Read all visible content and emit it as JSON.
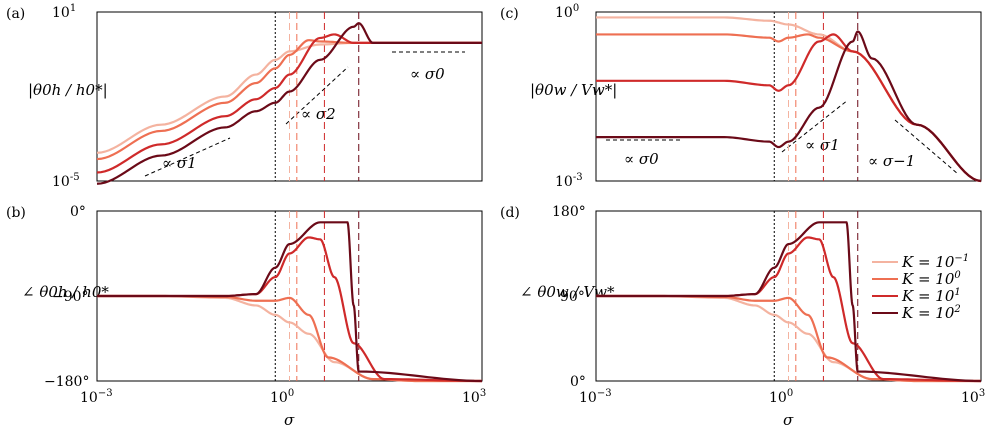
{
  "figure": {
    "x_axis_label": "σ",
    "colors": [
      "#f4b3a0",
      "#ee6f52",
      "#cf2a2a",
      "#6b0a18"
    ]
  },
  "chart_data": [
    {
      "panel": "(a)",
      "type": "line",
      "x_scale": "log",
      "y_scale": "log",
      "xlim": [
        0.001,
        1000
      ],
      "ylim": [
        1e-05,
        10
      ],
      "ylabel": "|θ0h / h0*|",
      "y_ticks": [
        {
          "base": "10",
          "exp": "-5"
        },
        {
          "base": "10",
          "exp": "1"
        }
      ],
      "x_ticks": [],
      "annotations": [
        "∝ σ1",
        "∝ σ2",
        "∝ σ0"
      ],
      "series": [
        {
          "name": "K = 10^-1",
          "x": [
            0.001,
            0.01,
            0.1,
            0.3,
            0.6,
            1,
            3,
            10,
            1000
          ],
          "y": [
            0.0001,
            0.001,
            0.01,
            0.06,
            0.2,
            0.4,
            0.7,
            0.8,
            0.8
          ]
        },
        {
          "name": "K = 10^0",
          "x": [
            0.001,
            0.01,
            0.1,
            0.3,
            0.6,
            1,
            2,
            3,
            10,
            1000
          ],
          "y": [
            6e-05,
            0.0006,
            0.006,
            0.03,
            0.1,
            0.3,
            1.0,
            0.9,
            0.8,
            0.8
          ]
        },
        {
          "name": "K = 10^1",
          "x": [
            0.001,
            0.01,
            0.1,
            0.3,
            0.6,
            1,
            3,
            5,
            10,
            1000
          ],
          "y": [
            2e-05,
            0.0002,
            0.002,
            0.008,
            0.02,
            0.06,
            1.2,
            1.6,
            0.8,
            0.8
          ]
        },
        {
          "name": "K = 10^2",
          "x": [
            0.001,
            0.01,
            0.1,
            0.3,
            0.6,
            1,
            3,
            10,
            12,
            20,
            1000
          ],
          "y": [
            8e-06,
            8e-05,
            0.0008,
            0.003,
            0.006,
            0.015,
            0.2,
            3.0,
            4.0,
            0.8,
            0.8
          ]
        }
      ]
    },
    {
      "panel": "(b)",
      "type": "line",
      "x_scale": "log",
      "y_scale": "linear",
      "xlim": [
        0.001,
        1000
      ],
      "ylim": [
        -180,
        0
      ],
      "ylabel": "∠ θ0h / h0*",
      "y_ticks": [
        "0°",
        "−90°",
        "−180°"
      ],
      "x_ticks": [
        {
          "base": "10",
          "exp": "−3"
        },
        {
          "base": "10",
          "exp": "0"
        },
        {
          "base": "10",
          "exp": "3"
        }
      ],
      "series": [
        {
          "name": "K = 10^-1",
          "x": [
            0.001,
            0.01,
            0.1,
            0.3,
            0.6,
            1,
            2,
            5,
            20,
            100,
            1000
          ],
          "y": [
            -90,
            -90,
            -92,
            -100,
            -110,
            -118,
            -130,
            -160,
            -178,
            -180,
            -180
          ]
        },
        {
          "name": "K = 10^0",
          "x": [
            0.001,
            0.01,
            0.1,
            0.3,
            0.6,
            1,
            2,
            4,
            20,
            100,
            1000
          ],
          "y": [
            -90,
            -90,
            -91,
            -95,
            -95,
            -92,
            -110,
            -155,
            -178,
            -180,
            -180
          ]
        },
        {
          "name": "K = 10^1",
          "x": [
            0.001,
            0.01,
            0.1,
            0.3,
            0.6,
            1,
            2,
            3,
            5,
            10,
            30,
            1000
          ],
          "y": [
            -90,
            -90,
            -90,
            -88,
            -70,
            -45,
            -28,
            -30,
            -70,
            -140,
            -178,
            -180
          ]
        },
        {
          "name": "K = 10^2",
          "x": [
            0.001,
            0.01,
            0.1,
            0.3,
            0.6,
            1,
            3,
            8,
            10,
            12,
            1000
          ],
          "y": [
            -90,
            -90,
            -90,
            -88,
            -60,
            -35,
            -12,
            -12,
            -100,
            -170,
            -180
          ]
        }
      ]
    },
    {
      "panel": "(c)",
      "type": "line",
      "x_scale": "log",
      "y_scale": "log",
      "xlim": [
        0.001,
        1000
      ],
      "ylim": [
        0.001,
        1
      ],
      "ylabel": "|θ0w / Vw*|",
      "y_ticks": [
        {
          "base": "10",
          "exp": "-3"
        },
        {
          "base": "10",
          "exp": "0"
        }
      ],
      "x_ticks": [],
      "annotations": [
        "∝ σ0",
        "∝ σ1",
        "∝ σ−1"
      ],
      "series": [
        {
          "name": "K = 10^-1",
          "x": [
            0.001,
            0.01,
            0.1,
            0.5,
            1,
            3,
            10,
            100,
            1000
          ],
          "y": [
            0.8,
            0.8,
            0.8,
            0.7,
            0.6,
            0.4,
            0.2,
            0.01,
            0.001
          ]
        },
        {
          "name": "K = 10^0",
          "x": [
            0.001,
            0.01,
            0.1,
            0.5,
            0.7,
            1,
            2,
            3,
            10,
            100,
            1000
          ],
          "y": [
            0.4,
            0.4,
            0.4,
            0.35,
            0.3,
            0.35,
            0.4,
            0.35,
            0.2,
            0.01,
            0.001
          ]
        },
        {
          "name": "K = 10^1",
          "x": [
            0.001,
            0.01,
            0.1,
            0.5,
            0.7,
            1,
            3,
            5,
            10,
            100,
            1000
          ],
          "y": [
            0.06,
            0.06,
            0.06,
            0.05,
            0.04,
            0.05,
            0.3,
            0.4,
            0.2,
            0.01,
            0.001
          ]
        },
        {
          "name": "K = 10^2",
          "x": [
            0.001,
            0.01,
            0.1,
            0.5,
            0.7,
            1,
            3,
            10,
            12,
            20,
            100,
            1000
          ],
          "y": [
            0.006,
            0.006,
            0.006,
            0.005,
            0.004,
            0.005,
            0.02,
            0.3,
            0.45,
            0.15,
            0.01,
            0.001
          ]
        }
      ]
    },
    {
      "panel": "(d)",
      "type": "line",
      "x_scale": "log",
      "y_scale": "linear",
      "xlim": [
        0.001,
        1000
      ],
      "ylim": [
        0,
        180
      ],
      "ylabel": "∠ θ0w / Vw*",
      "y_ticks": [
        "180°",
        "90°",
        "0°"
      ],
      "x_ticks": [
        {
          "base": "10",
          "exp": "−3"
        },
        {
          "base": "10",
          "exp": "0"
        },
        {
          "base": "10",
          "exp": "3"
        }
      ],
      "legend_position": "right",
      "series": [
        {
          "name": "K = 10^-1",
          "x": [
            0.001,
            0.01,
            0.1,
            0.3,
            0.6,
            1,
            2,
            5,
            20,
            100,
            1000
          ],
          "y": [
            90,
            90,
            88,
            80,
            70,
            62,
            50,
            20,
            2,
            0,
            0
          ]
        },
        {
          "name": "K = 10^0",
          "x": [
            0.001,
            0.01,
            0.1,
            0.3,
            0.6,
            1,
            2,
            4,
            20,
            100,
            1000
          ],
          "y": [
            90,
            90,
            89,
            85,
            85,
            88,
            70,
            25,
            2,
            0,
            0
          ]
        },
        {
          "name": "K = 10^1",
          "x": [
            0.001,
            0.01,
            0.1,
            0.3,
            0.6,
            1,
            2,
            3,
            5,
            10,
            30,
            1000
          ],
          "y": [
            90,
            90,
            90,
            92,
            110,
            135,
            152,
            150,
            110,
            40,
            2,
            0
          ]
        },
        {
          "name": "K = 10^2",
          "x": [
            0.001,
            0.01,
            0.1,
            0.3,
            0.6,
            1,
            3,
            8,
            10,
            12,
            1000
          ],
          "y": [
            90,
            90,
            90,
            92,
            120,
            145,
            168,
            168,
            80,
            10,
            0
          ]
        }
      ]
    }
  ],
  "legend": {
    "items": [
      {
        "label": "K = 10",
        "sup": "−1"
      },
      {
        "label": "K = 10",
        "sup": "0"
      },
      {
        "label": "K = 10",
        "sup": "1"
      },
      {
        "label": "K = 10",
        "sup": "2"
      }
    ]
  },
  "vlines": [
    {
      "x": 0.6,
      "style": "dotted",
      "color": "#000000"
    },
    {
      "x": 1.0,
      "style": "dashed",
      "color": "#f4b3a0"
    },
    {
      "x": 1.3,
      "style": "dashed",
      "color": "#ee6f52"
    },
    {
      "x": 3.5,
      "style": "dashed",
      "color": "#cf2a2a"
    },
    {
      "x": 12.0,
      "style": "dashed",
      "color": "#6b0a18"
    }
  ]
}
